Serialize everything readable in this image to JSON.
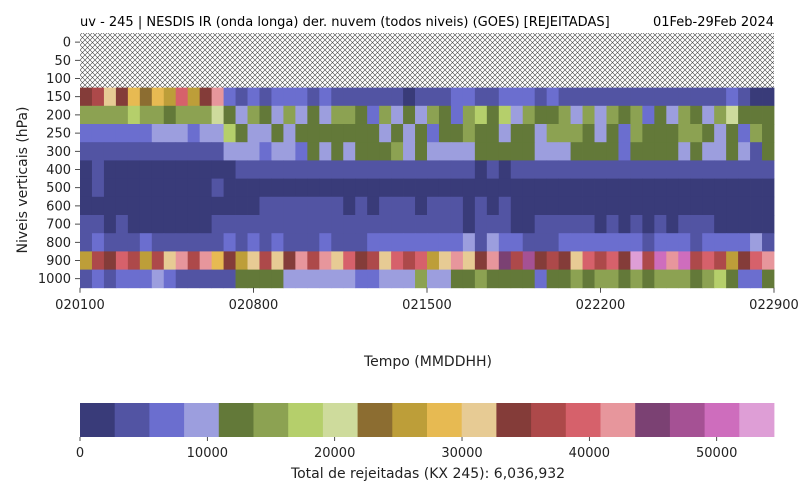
{
  "chart_data": {
    "type": "heatmap",
    "title_left": "uv - 245 | NESDIS IR (onda longa) der. nuvem (todos niveis) (GOES) [REJEITADAS]",
    "title_right": "01Feb-29Feb 2024",
    "xlabel": "Tempo (MMDDHH)",
    "ylabel": "Niveis verticais (hPa)",
    "x_ticks": [
      "020100",
      "020800",
      "021500",
      "022200",
      "022900"
    ],
    "y_levels": [
      "0",
      "50",
      "100",
      "150",
      "200",
      "250",
      "300",
      "400",
      "500",
      "600",
      "700",
      "800",
      "900",
      "1000"
    ],
    "n_time_steps": 58,
    "colorbar": {
      "label": "Total de rejeitadas (KX 245): 6,036,932",
      "min": 0,
      "max": 54500,
      "ticks": [
        0,
        10000,
        20000,
        30000,
        40000,
        50000
      ],
      "colors": [
        "#393b79",
        "#5254a3",
        "#6b6ecf",
        "#9c9ede",
        "#637939",
        "#8ca252",
        "#b5cf6b",
        "#cedb9c",
        "#8c6d31",
        "#bd9e39",
        "#e7ba52",
        "#e7cb94",
        "#843c39",
        "#ad494a",
        "#d6616b",
        "#e7969c",
        "#7b4173",
        "#a55194",
        "#ce6dbd",
        "#de9ed6"
      ]
    },
    "missing_levels": [
      "0",
      "50",
      "100"
    ],
    "rows": {
      "150": [
        12,
        13,
        11,
        12,
        10,
        8,
        10,
        9,
        14,
        9,
        12,
        15,
        2,
        1,
        2,
        1,
        2,
        2,
        2,
        1,
        2,
        1,
        1,
        1,
        1,
        1,
        1,
        0,
        1,
        1,
        1,
        2,
        2,
        1,
        1,
        2,
        2,
        2,
        1,
        2,
        1,
        1,
        1,
        1,
        1,
        1,
        1,
        1,
        1,
        1,
        1,
        1,
        1,
        1,
        2,
        1,
        0,
        0
      ],
      "200": [
        5,
        5,
        5,
        5,
        6,
        5,
        5,
        4,
        5,
        5,
        5,
        7,
        4,
        3,
        5,
        4,
        3,
        5,
        3,
        4,
        3,
        5,
        5,
        4,
        2,
        5,
        3,
        4,
        3,
        5,
        4,
        2,
        5,
        6,
        4,
        6,
        3,
        5,
        4,
        4,
        5,
        3,
        5,
        3,
        5,
        4,
        5,
        2,
        4,
        3,
        5,
        4,
        3,
        5,
        7,
        4,
        4,
        4
      ],
      "250": [
        2,
        2,
        2,
        2,
        2,
        2,
        3,
        3,
        3,
        2,
        3,
        3,
        6,
        4,
        3,
        3,
        4,
        3,
        4,
        4,
        4,
        4,
        4,
        4,
        4,
        3,
        4,
        3,
        4,
        2,
        4,
        4,
        5,
        4,
        4,
        3,
        4,
        4,
        3,
        5,
        5,
        5,
        4,
        3,
        4,
        2,
        5,
        4,
        4,
        4,
        5,
        5,
        4,
        3,
        4,
        2,
        5,
        4
      ],
      "300": [
        1,
        1,
        1,
        1,
        1,
        1,
        1,
        1,
        1,
        1,
        1,
        1,
        3,
        3,
        3,
        2,
        3,
        3,
        2,
        4,
        3,
        4,
        3,
        4,
        4,
        4,
        5,
        3,
        4,
        3,
        3,
        3,
        3,
        4,
        4,
        4,
        4,
        4,
        3,
        3,
        3,
        4,
        4,
        4,
        4,
        2,
        4,
        4,
        4,
        4,
        3,
        4,
        3,
        3,
        4,
        3,
        1,
        4
      ],
      "400": [
        0,
        1,
        0,
        0,
        0,
        0,
        0,
        0,
        0,
        0,
        0,
        0,
        0,
        1,
        1,
        1,
        1,
        1,
        1,
        1,
        1,
        1,
        1,
        1,
        1,
        1,
        1,
        1,
        1,
        1,
        1,
        1,
        1,
        0,
        1,
        0,
        1,
        1,
        1,
        1,
        1,
        1,
        1,
        1,
        1,
        1,
        1,
        1,
        1,
        1,
        1,
        1,
        1,
        1,
        1,
        1,
        1,
        1
      ],
      "500": [
        0,
        1,
        0,
        0,
        0,
        0,
        0,
        0,
        0,
        0,
        0,
        1,
        0,
        0,
        0,
        0,
        0,
        0,
        0,
        0,
        0,
        0,
        0,
        0,
        0,
        0,
        0,
        0,
        0,
        0,
        0,
        0,
        0,
        0,
        0,
        0,
        0,
        0,
        0,
        0,
        0,
        0,
        0,
        0,
        0,
        0,
        0,
        0,
        0,
        0,
        0,
        0,
        0,
        0,
        0,
        0,
        0,
        0
      ],
      "600": [
        0,
        0,
        0,
        0,
        0,
        0,
        0,
        0,
        0,
        0,
        0,
        0,
        0,
        0,
        0,
        1,
        1,
        1,
        1,
        1,
        1,
        1,
        0,
        1,
        0,
        1,
        1,
        1,
        0,
        1,
        1,
        1,
        0,
        1,
        0,
        1,
        0,
        0,
        0,
        0,
        0,
        0,
        0,
        0,
        0,
        0,
        0,
        0,
        0,
        0,
        0,
        0,
        0,
        0,
        0,
        0,
        0,
        0
      ],
      "700": [
        1,
        1,
        0,
        1,
        0,
        0,
        0,
        0,
        0,
        0,
        0,
        1,
        1,
        1,
        1,
        1,
        1,
        1,
        1,
        1,
        1,
        1,
        1,
        1,
        1,
        1,
        1,
        1,
        1,
        1,
        1,
        1,
        0,
        1,
        1,
        1,
        0,
        0,
        1,
        1,
        1,
        1,
        1,
        0,
        1,
        0,
        1,
        0,
        1,
        0,
        1,
        1,
        1,
        0,
        0,
        0,
        0,
        0
      ],
      "800": [
        1,
        2,
        1,
        1,
        1,
        2,
        1,
        1,
        1,
        1,
        1,
        1,
        2,
        1,
        2,
        1,
        2,
        1,
        1,
        1,
        2,
        1,
        1,
        1,
        2,
        2,
        2,
        2,
        2,
        2,
        2,
        2,
        3,
        1,
        3,
        2,
        2,
        1,
        1,
        1,
        2,
        2,
        2,
        2,
        2,
        2,
        2,
        1,
        2,
        2,
        2,
        1,
        2,
        2,
        2,
        2,
        3,
        1
      ],
      "900": [
        9,
        13,
        12,
        14,
        13,
        9,
        13,
        11,
        15,
        13,
        15,
        10,
        12,
        9,
        11,
        13,
        11,
        12,
        15,
        13,
        15,
        11,
        14,
        12,
        13,
        11,
        14,
        13,
        14,
        9,
        11,
        15,
        11,
        12,
        15,
        16,
        13,
        17,
        12,
        13,
        12,
        11,
        14,
        13,
        14,
        12,
        19,
        13,
        18,
        15,
        18,
        13,
        14,
        13,
        9,
        12,
        14,
        15
      ],
      "1000": [
        1,
        2,
        1,
        2,
        2,
        2,
        3,
        2,
        1,
        1,
        1,
        1,
        1,
        4,
        4,
        4,
        4,
        3,
        3,
        3,
        3,
        3,
        3,
        2,
        2,
        3,
        3,
        3,
        5,
        3,
        3,
        4,
        4,
        5,
        4,
        4,
        4,
        4,
        2,
        4,
        4,
        5,
        4,
        5,
        5,
        4,
        5,
        4,
        5,
        5,
        5,
        4,
        5,
        6,
        4,
        2,
        2,
        4
      ]
    }
  }
}
